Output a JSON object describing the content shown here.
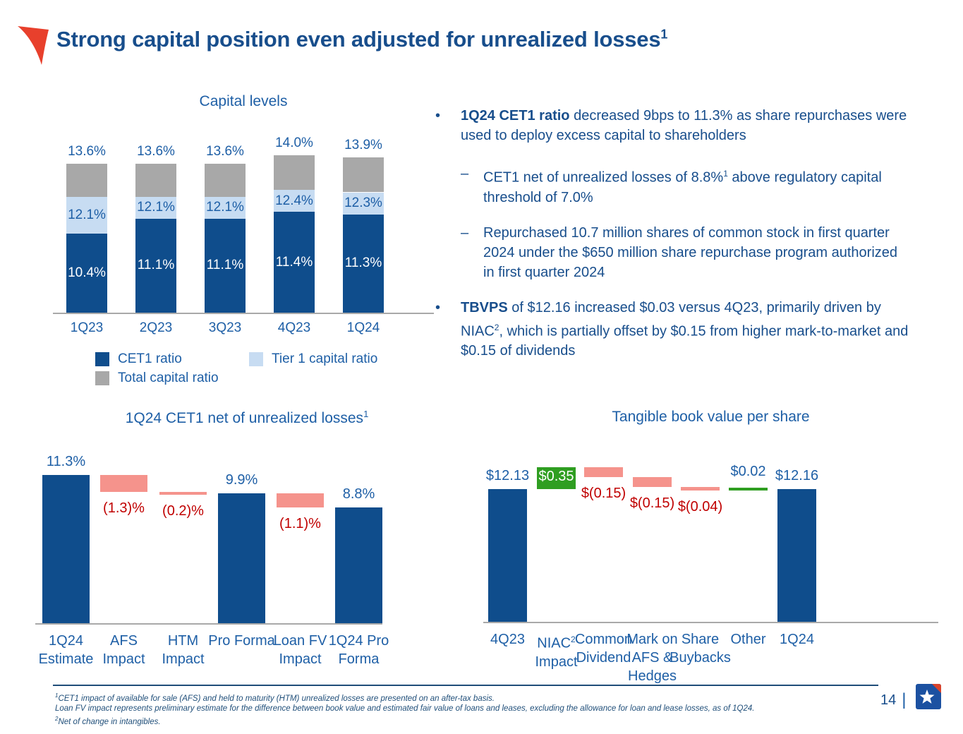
{
  "slide": {
    "title": "Strong capital position even adjusted for unrealized losses",
    "title_sup": "1",
    "page_number": "14",
    "page_divider": "|"
  },
  "colors": {
    "navy_text": "#184E8C",
    "chart_label_blue": "#1E5FA6",
    "bar_navy": "#0F4D8C",
    "bar_light_blue": "#C7DCF2",
    "bar_gray": "#A8A8A8",
    "bar_pink": "#F5938C",
    "bar_green": "#2F9E21",
    "label_red": "#C00000",
    "axis_gray": "#A9A9A9",
    "footnote_blue": "#1F4E79",
    "flag_red": "#E8402C",
    "logo_blue": "#1C51A1",
    "logo_red": "#D9432B"
  },
  "chart_data": [
    {
      "type": "bar",
      "subtype": "stacked-capital-ratios",
      "title": "Capital levels",
      "categories": [
        "1Q23",
        "2Q23",
        "3Q23",
        "4Q23",
        "1Q24"
      ],
      "series": [
        {
          "name": "CET1 ratio",
          "values": [
            10.4,
            11.1,
            11.1,
            11.4,
            11.3
          ],
          "labels": [
            "10.4%",
            "11.1%",
            "11.1%",
            "11.4%",
            "11.3%"
          ]
        },
        {
          "name": "Tier 1 capital ratio",
          "values": [
            12.1,
            12.1,
            12.1,
            12.4,
            12.3
          ],
          "labels": [
            "12.1%",
            "12.1%",
            "12.1%",
            "12.4%",
            "12.3%"
          ]
        },
        {
          "name": "Total capital ratio",
          "values": [
            13.6,
            13.6,
            13.6,
            14.0,
            13.9
          ],
          "labels": [
            "13.6%",
            "13.6%",
            "13.6%",
            "14.0%",
            "13.9%"
          ]
        }
      ],
      "legend_position": "bottom",
      "ylim": [
        6.8,
        14.5
      ],
      "grid": false
    },
    {
      "type": "bar",
      "subtype": "waterfall",
      "title": "1Q24 CET1 net of unrealized losses",
      "title_sup": "1",
      "unit": "%",
      "steps": [
        {
          "label_lines": [
            "1Q24",
            "Estimate"
          ],
          "kind": "total",
          "value": 11.3,
          "display": "11.3%"
        },
        {
          "label_lines": [
            "AFS",
            "Impact"
          ],
          "kind": "decrease",
          "value": -1.3,
          "display": "(1.3)%"
        },
        {
          "label_lines": [
            "HTM",
            "Impact"
          ],
          "kind": "decrease",
          "value": -0.2,
          "display": "(0.2)%"
        },
        {
          "label_lines": [
            "Pro Forma"
          ],
          "kind": "total",
          "value": 9.9,
          "display": "9.9%"
        },
        {
          "label_lines": [
            "Loan FV",
            "Impact"
          ],
          "kind": "decrease",
          "value": -1.1,
          "display": "(1.1)%"
        },
        {
          "label_lines": [
            "1Q24 Pro",
            "Forma"
          ],
          "kind": "total",
          "value": 8.8,
          "display": "8.8%"
        }
      ]
    },
    {
      "type": "bar",
      "subtype": "waterfall",
      "title": "Tangible book value per share",
      "unit": "$",
      "steps": [
        {
          "label_lines": [
            "4Q23"
          ],
          "kind": "total",
          "value": 12.13,
          "display": "$12.13"
        },
        {
          "label_lines": [
            "NIAC",
            "Impact"
          ],
          "label_sup": "2",
          "kind": "increase",
          "value": 0.35,
          "display": "$0.35",
          "label_inside": true
        },
        {
          "label_lines": [
            "Common",
            "Dividend"
          ],
          "kind": "decrease",
          "value": -0.15,
          "display": "$(0.15)"
        },
        {
          "label_lines": [
            "Mark on",
            "AFS &",
            "Hedges"
          ],
          "kind": "decrease",
          "value": -0.15,
          "display": "$(0.15)"
        },
        {
          "label_lines": [
            "Share",
            "Buybacks"
          ],
          "kind": "decrease",
          "value": -0.04,
          "display": "$(0.04)"
        },
        {
          "label_lines": [
            "Other"
          ],
          "kind": "increase",
          "value": 0.02,
          "display": "$0.02",
          "thin": true
        },
        {
          "label_lines": [
            "1Q24"
          ],
          "kind": "total",
          "value": 12.16,
          "display": "$12.16"
        }
      ]
    }
  ],
  "commentary": {
    "bullets": [
      {
        "level": 1,
        "marker": "•",
        "runs": [
          {
            "t": "1Q24 CET1 ratio",
            "b": true
          },
          {
            "t": " decreased 9bps to 11.3% as share repurchases were used to deploy excess capital to shareholders"
          }
        ]
      },
      {
        "level": 2,
        "marker": "–",
        "runs": [
          {
            "t": "CET1 net of unrealized losses of 8.8%"
          },
          {
            "t": "1",
            "sup": true
          },
          {
            "t": " above regulatory capital threshold of 7.0%"
          }
        ]
      },
      {
        "level": 2,
        "marker": "–",
        "runs": [
          {
            "t": "Repurchased 10.7 million shares of common stock in first quarter 2024 under the $650 million share repurchase program authorized in first quarter 2024"
          }
        ]
      },
      {
        "level": 1,
        "marker": "•",
        "runs": [
          {
            "t": "TBVPS",
            "b": true
          },
          {
            "t": " of $12.16 increased $0.03 versus 4Q23, primarily driven by NIAC"
          },
          {
            "t": "2",
            "sup": true
          },
          {
            "t": ", which is partially offset by $0.15 from higher mark-to-market and $0.15 of dividends"
          }
        ]
      }
    ]
  },
  "footnotes": {
    "lines": [
      [
        {
          "t": "1",
          "sup": true
        },
        {
          "t": "CET1 impact of available for sale (AFS) and held to maturity (HTM) unrealized losses are presented on an after-tax basis."
        }
      ],
      [
        {
          "t": "Loan FV impact represents preliminary estimate for the difference between book value and estimated fair value of loans and leases, excluding the allowance for loan and lease losses, as of 1Q24."
        }
      ],
      [
        {
          "t": "2",
          "sup": true
        },
        {
          "t": "Net of change in intangibles."
        }
      ]
    ]
  }
}
